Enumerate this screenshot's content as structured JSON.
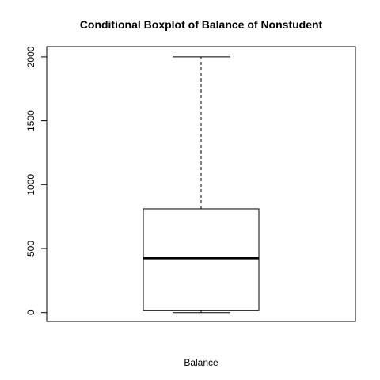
{
  "chart_data": {
    "type": "boxplot",
    "title": "Conditional Boxplot of Balance of Nonstudent",
    "xlabel": "Balance",
    "ylabel": "",
    "ylim": [
      -70,
      2080
    ],
    "yticks": [
      0,
      500,
      1000,
      1500,
      2000
    ],
    "ytick_labels": [
      "0",
      "500",
      "1000",
      "1500",
      "2000"
    ],
    "box": {
      "whisker_low": 0,
      "q1": 15,
      "median": 425,
      "q3": 810,
      "whisker_high": 2000
    },
    "grid": false,
    "colors": {
      "line": "#000000",
      "box_fill": "#ffffff",
      "background": "#ffffff"
    }
  }
}
